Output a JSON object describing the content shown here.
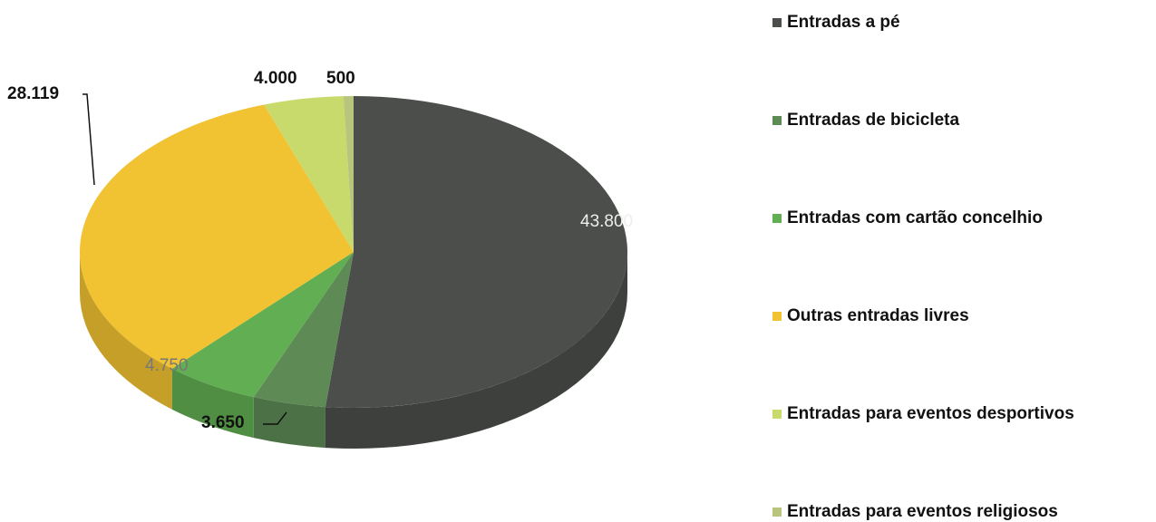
{
  "chart_data": {
    "type": "pie3d",
    "categories": [
      "Entradas a pé",
      "Entradas de bicicleta",
      "Entradas com cartão concelhio",
      "Outras entradas livres",
      "Entradas para eventos desportivos",
      "Entradas para eventos religiosos"
    ],
    "values": [
      43800,
      3650,
      4750,
      28119,
      4000,
      500
    ],
    "value_labels": [
      "43.800",
      "3.650",
      "4.750",
      "28.119",
      "4.000",
      "500"
    ],
    "colors": [
      "#4b4e4b",
      "#5e8a55",
      "#62ae52",
      "#f1c232",
      "#c8da6c",
      "#b9c47c"
    ],
    "legend": "right"
  }
}
